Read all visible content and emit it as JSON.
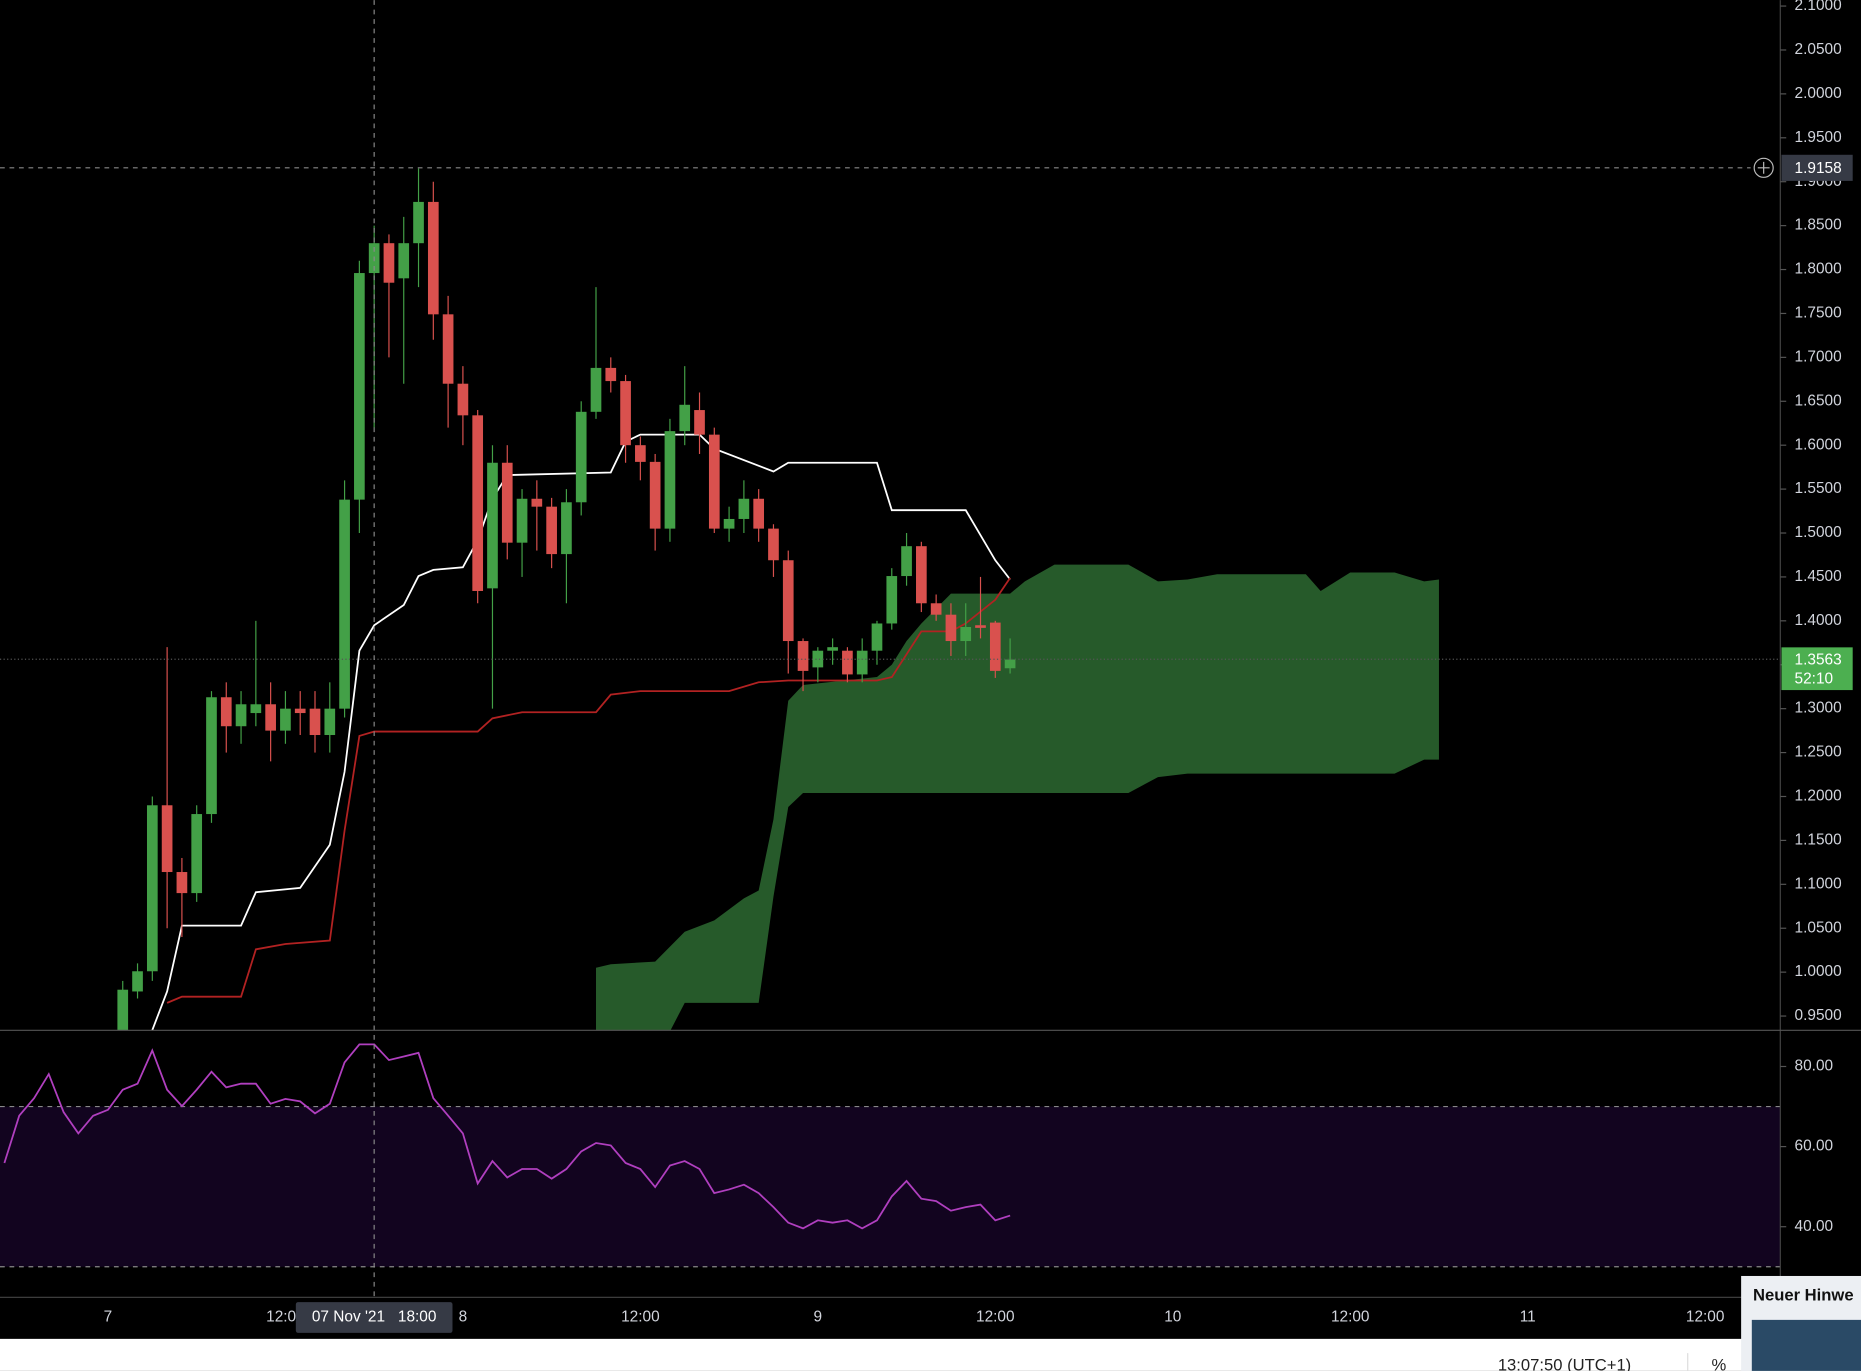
{
  "time_axis": {
    "xlim": [
      -7.3,
      113.08
    ],
    "xticks": [
      {
        "value": 0,
        "label": "7"
      },
      {
        "value": 12,
        "label": "12:00"
      },
      {
        "value": 24,
        "label": "8"
      },
      {
        "value": 36,
        "label": "12:00"
      },
      {
        "value": 48,
        "label": "9"
      },
      {
        "value": 60,
        "label": "12:00"
      },
      {
        "value": 72,
        "label": "10"
      },
      {
        "value": 84,
        "label": "12:00"
      },
      {
        "value": 96,
        "label": "11"
      },
      {
        "value": 108,
        "label": "12:00"
      }
    ]
  },
  "chart_data": [
    {
      "type": "candlestick",
      "up_color": "#43a047",
      "down_color": "#d9514e",
      "x": [
        1,
        2,
        3,
        4,
        5,
        6,
        7,
        8,
        9,
        10,
        11,
        12,
        13,
        14,
        15,
        16,
        17,
        18,
        19,
        20,
        21,
        22,
        23,
        24,
        25,
        26,
        27,
        28,
        29,
        30,
        31,
        32,
        33,
        34,
        35,
        36,
        37,
        38,
        39,
        40,
        41,
        42,
        43,
        44,
        45,
        46,
        47,
        48,
        49,
        50,
        51,
        52,
        53,
        54,
        55,
        56,
        57,
        58,
        59,
        60,
        61
      ],
      "open": [
        0.93,
        0.978,
        1.001,
        1.19,
        1.114,
        1.09,
        1.18,
        1.313,
        1.28,
        1.295,
        1.305,
        1.275,
        1.3,
        1.3,
        1.27,
        1.3,
        1.538,
        1.796,
        1.83,
        1.79,
        1.83,
        1.877,
        1.749,
        1.67,
        1.634,
        1.437,
        1.58,
        1.489,
        1.539,
        1.53,
        1.476,
        1.535,
        1.638,
        1.688,
        1.673,
        1.6,
        1.581,
        1.505,
        1.616,
        1.64,
        1.612,
        1.505,
        1.516,
        1.539,
        1.505,
        1.469,
        1.377,
        1.347,
        1.366,
        1.366,
        1.339,
        1.366,
        1.397,
        1.451,
        1.485,
        1.42,
        1.407,
        1.377,
        1.395,
        1.398,
        1.346
      ],
      "high": [
        0.99,
        1.01,
        1.2,
        1.37,
        1.13,
        1.19,
        1.32,
        1.33,
        1.32,
        1.4,
        1.33,
        1.32,
        1.32,
        1.32,
        1.33,
        1.56,
        1.81,
        1.85,
        1.84,
        1.86,
        1.915,
        1.9,
        1.77,
        1.69,
        1.64,
        1.6,
        1.6,
        1.55,
        1.56,
        1.54,
        1.55,
        1.65,
        1.78,
        1.7,
        1.68,
        1.61,
        1.59,
        1.63,
        1.69,
        1.66,
        1.62,
        1.53,
        1.56,
        1.55,
        1.51,
        1.48,
        1.38,
        1.37,
        1.38,
        1.37,
        1.38,
        1.4,
        1.46,
        1.5,
        1.49,
        1.43,
        1.42,
        1.42,
        1.45,
        1.4,
        1.38
      ],
      "low": [
        0.92,
        0.97,
        0.99,
        1.05,
        1.04,
        1.08,
        1.17,
        1.25,
        1.26,
        1.28,
        1.24,
        1.26,
        1.27,
        1.25,
        1.25,
        1.29,
        1.5,
        1.62,
        1.7,
        1.67,
        1.78,
        1.72,
        1.62,
        1.6,
        1.42,
        1.3,
        1.47,
        1.45,
        1.48,
        1.46,
        1.42,
        1.52,
        1.63,
        1.66,
        1.58,
        1.56,
        1.48,
        1.49,
        1.6,
        1.59,
        1.5,
        1.49,
        1.5,
        1.49,
        1.45,
        1.34,
        1.32,
        1.33,
        1.35,
        1.33,
        1.33,
        1.35,
        1.39,
        1.44,
        1.41,
        1.4,
        1.36,
        1.36,
        1.38,
        1.335,
        1.34
      ],
      "close": [
        0.98,
        1.001,
        1.19,
        1.114,
        1.09,
        1.18,
        1.313,
        1.28,
        1.305,
        1.305,
        1.275,
        1.3,
        1.295,
        1.27,
        1.3,
        1.538,
        1.796,
        1.83,
        1.785,
        1.83,
        1.877,
        1.749,
        1.67,
        1.634,
        1.434,
        1.58,
        1.489,
        1.539,
        1.53,
        1.476,
        1.535,
        1.638,
        1.688,
        1.673,
        1.6,
        1.581,
        1.505,
        1.616,
        1.646,
        1.612,
        1.505,
        1.516,
        1.539,
        1.505,
        1.469,
        1.377,
        1.343,
        1.366,
        1.37,
        1.339,
        1.366,
        1.397,
        1.451,
        1.485,
        1.42,
        1.407,
        1.377,
        1.393,
        1.392,
        1.343,
        1.356
      ],
      "lines": [
        {
          "color": "#ffffff",
          "x": [
            3,
            4,
            5,
            9,
            10,
            13,
            15,
            16,
            17,
            18,
            20,
            21,
            22,
            24,
            25,
            26,
            27,
            34,
            35,
            36,
            40,
            41,
            45,
            46,
            52,
            53,
            58,
            60,
            61
          ],
          "values": [
            0.934,
            0.978,
            1.053,
            1.053,
            1.091,
            1.096,
            1.145,
            1.228,
            1.366,
            1.395,
            1.418,
            1.451,
            1.458,
            1.461,
            1.492,
            1.539,
            1.566,
            1.569,
            1.604,
            1.612,
            1.612,
            1.596,
            1.57,
            1.58,
            1.58,
            1.526,
            1.526,
            1.469,
            1.447
          ]
        },
        {
          "color": "#b22222",
          "x": [
            4,
            5,
            9,
            10,
            12,
            15,
            16,
            17,
            18,
            25,
            26,
            28,
            33,
            34,
            36,
            42,
            44,
            46,
            52,
            53,
            55,
            57,
            58,
            60,
            61
          ],
          "values": [
            0.965,
            0.972,
            0.972,
            1.026,
            1.032,
            1.036,
            1.161,
            1.269,
            1.274,
            1.274,
            1.289,
            1.296,
            1.296,
            1.316,
            1.32,
            1.32,
            1.33,
            1.332,
            1.332,
            1.336,
            1.388,
            1.388,
            1.397,
            1.424,
            1.449
          ]
        }
      ],
      "cloud": {
        "color": "#265a2a",
        "x": [
          33,
          34,
          37,
          39,
          41,
          43,
          44,
          45,
          46,
          47,
          52,
          53,
          54,
          55,
          57,
          59,
          61,
          62,
          64,
          69,
          71,
          73,
          75,
          81,
          82,
          84,
          87,
          89,
          90
        ],
        "upper": [
          1.005,
          1.009,
          1.012,
          1.046,
          1.059,
          1.084,
          1.093,
          1.174,
          1.309,
          1.327,
          1.336,
          1.35,
          1.377,
          1.397,
          1.431,
          1.431,
          1.431,
          1.445,
          1.464,
          1.464,
          1.445,
          1.447,
          1.453,
          1.453,
          1.434,
          1.455,
          1.455,
          1.445,
          1.447
        ],
        "lower": [
          0.9,
          0.9,
          0.9,
          0.965,
          0.965,
          0.965,
          0.965,
          1.086,
          1.188,
          1.204,
          1.204,
          1.204,
          1.204,
          1.204,
          1.204,
          1.204,
          1.204,
          1.204,
          1.204,
          1.204,
          1.222,
          1.226,
          1.226,
          1.226,
          1.226,
          1.226,
          1.226,
          1.242,
          1.242
        ]
      },
      "ylim": [
        0.9338,
        2.1068
      ],
      "yticks": [
        {
          "value": 0.95,
          "label": "0.9500"
        },
        {
          "value": 1.0,
          "label": "1.0000"
        },
        {
          "value": 1.05,
          "label": "1.0500"
        },
        {
          "value": 1.1,
          "label": "1.1000"
        },
        {
          "value": 1.15,
          "label": "1.1500"
        },
        {
          "value": 1.2,
          "label": "1.2000"
        },
        {
          "value": 1.25,
          "label": "1.2500"
        },
        {
          "value": 1.3,
          "label": "1.3000"
        },
        {
          "value": 1.35,
          "label": "1.3500"
        },
        {
          "value": 1.4,
          "label": "1.4000"
        },
        {
          "value": 1.45,
          "label": "1.4500"
        },
        {
          "value": 1.5,
          "label": "1.5000"
        },
        {
          "value": 1.55,
          "label": "1.5500"
        },
        {
          "value": 1.6,
          "label": "1.6000"
        },
        {
          "value": 1.65,
          "label": "1.6500"
        },
        {
          "value": 1.7,
          "label": "1.7000"
        },
        {
          "value": 1.75,
          "label": "1.7500"
        },
        {
          "value": 1.8,
          "label": "1.8000"
        },
        {
          "value": 1.85,
          "label": "1.8500"
        },
        {
          "value": 1.9,
          "label": "1.9000"
        },
        {
          "value": 1.95,
          "label": "1.9500"
        },
        {
          "value": 2.0,
          "label": "2.0000"
        },
        {
          "value": 2.05,
          "label": "2.0500"
        },
        {
          "value": 2.1,
          "label": "2.1000"
        }
      ],
      "crosshair": {
        "x": 18,
        "x_label": "07 Nov '21   18:00",
        "price": 1.9158
      },
      "last_price": {
        "value": 1.3563,
        "countdown": "52:10"
      }
    },
    {
      "type": "line",
      "color": "#b03fbf",
      "x": [
        -7,
        -6,
        -5,
        -4,
        -3,
        -2,
        -1,
        0,
        1,
        2,
        3,
        4,
        5,
        6,
        7,
        8,
        9,
        10,
        11,
        12,
        13,
        14,
        15,
        16,
        17,
        18,
        19,
        20,
        21,
        22,
        23,
        24,
        25,
        26,
        27,
        28,
        29,
        30,
        31,
        32,
        33,
        34,
        35,
        36,
        37,
        38,
        39,
        40,
        41,
        42,
        43,
        44,
        45,
        46,
        47,
        48,
        49,
        50,
        51,
        52,
        53,
        54,
        55,
        56,
        57,
        58,
        59,
        60,
        61
      ],
      "values": [
        55.9,
        67.7,
        72.1,
        78.1,
        68.6,
        63.3,
        67.7,
        69.2,
        74.2,
        75.7,
        84.0,
        74.2,
        70.1,
        74.2,
        78.7,
        74.8,
        75.7,
        75.7,
        70.7,
        71.9,
        71.3,
        68.3,
        70.7,
        81.0,
        85.5,
        85.5,
        81.6,
        82.5,
        83.4,
        72.1,
        67.7,
        63.3,
        50.8,
        56.4,
        52.3,
        54.4,
        54.4,
        52.0,
        54.4,
        58.8,
        60.9,
        60.3,
        55.9,
        54.4,
        49.9,
        55.3,
        56.4,
        54.4,
        48.4,
        49.3,
        50.5,
        48.4,
        44.9,
        41.0,
        39.6,
        41.6,
        41.0,
        41.6,
        39.6,
        41.6,
        47.6,
        51.4,
        47.0,
        46.4,
        44.0,
        44.9,
        45.5,
        41.6,
        42.8
      ],
      "band": [
        30,
        70
      ],
      "band_color": "#12041f",
      "ylim": [
        22.37,
        89.04
      ],
      "yticks": [
        {
          "value": 40,
          "label": "40.00"
        },
        {
          "value": 60,
          "label": "60.00"
        },
        {
          "value": 80,
          "label": "80.00"
        }
      ]
    }
  ],
  "status_bar": {
    "clock": "13:07:50 (UTC+1)",
    "percent": "%"
  },
  "notification": {
    "title": "Neuer Hinwe"
  }
}
